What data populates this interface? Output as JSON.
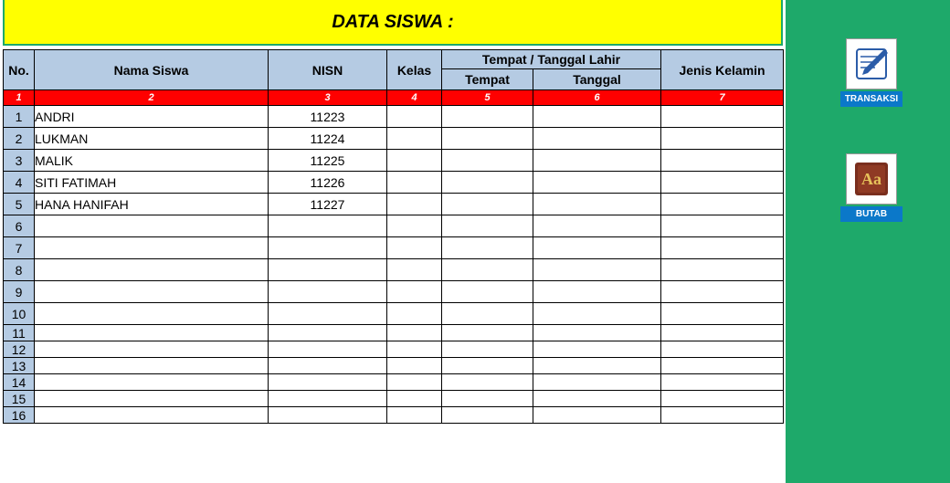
{
  "title": "DATA SISWA :",
  "columns": {
    "no": "No.",
    "nama": "Nama Siswa",
    "nisn": "NISN",
    "kelas": "Kelas",
    "ttl_group": "Tempat / Tanggal Lahir",
    "tempat": "Tempat",
    "tanggal": "Tanggal",
    "jk": "Jenis Kelamin"
  },
  "column_numbers": {
    "no": "1",
    "nama": "2",
    "nisn": "3",
    "kelas": "4",
    "tempat": "5",
    "tanggal": "6",
    "jk": "7"
  },
  "colors": {
    "title_bg": "#ffff00",
    "frame_border": "#1ea96a",
    "header_bg": "#b5cbe3",
    "number_row_bg": "#ff0000",
    "number_row_text": "#ffffff",
    "side_bg": "#1ea96a",
    "side_btn_bg": "#0b78c9"
  },
  "rows": [
    {
      "n": "1",
      "nama": "ANDRI",
      "nisn": "11223",
      "kelas": "",
      "tempat": "",
      "tanggal": "",
      "jk": ""
    },
    {
      "n": "2",
      "nama": "LUKMAN",
      "nisn": "11224",
      "kelas": "",
      "tempat": "",
      "tanggal": "",
      "jk": ""
    },
    {
      "n": "3",
      "nama": "MALIK",
      "nisn": "11225",
      "kelas": "",
      "tempat": "",
      "tanggal": "",
      "jk": ""
    },
    {
      "n": "4",
      "nama": "SITI FATIMAH",
      "nisn": "11226",
      "kelas": "",
      "tempat": "",
      "tanggal": "",
      "jk": ""
    },
    {
      "n": "5",
      "nama": "HANA HANIFAH",
      "nisn": "11227",
      "kelas": "",
      "tempat": "",
      "tanggal": "",
      "jk": ""
    },
    {
      "n": "6",
      "nama": "",
      "nisn": "",
      "kelas": "",
      "tempat": "",
      "tanggal": "",
      "jk": ""
    },
    {
      "n": "7",
      "nama": "",
      "nisn": "",
      "kelas": "",
      "tempat": "",
      "tanggal": "",
      "jk": ""
    },
    {
      "n": "8",
      "nama": "",
      "nisn": "",
      "kelas": "",
      "tempat": "",
      "tanggal": "",
      "jk": ""
    },
    {
      "n": "9",
      "nama": "",
      "nisn": "",
      "kelas": "",
      "tempat": "",
      "tanggal": "",
      "jk": ""
    },
    {
      "n": "10",
      "nama": "",
      "nisn": "",
      "kelas": "",
      "tempat": "",
      "tanggal": "",
      "jk": ""
    },
    {
      "n": "11",
      "nama": "",
      "nisn": "",
      "kelas": "",
      "tempat": "",
      "tanggal": "",
      "jk": ""
    },
    {
      "n": "12",
      "nama": "",
      "nisn": "",
      "kelas": "",
      "tempat": "",
      "tanggal": "",
      "jk": ""
    },
    {
      "n": "13",
      "nama": "",
      "nisn": "",
      "kelas": "",
      "tempat": "",
      "tanggal": "",
      "jk": ""
    },
    {
      "n": "14",
      "nama": "",
      "nisn": "",
      "kelas": "",
      "tempat": "",
      "tanggal": "",
      "jk": ""
    },
    {
      "n": "15",
      "nama": "",
      "nisn": "",
      "kelas": "",
      "tempat": "",
      "tanggal": "",
      "jk": ""
    },
    {
      "n": "16",
      "nama": "",
      "nisn": "",
      "kelas": "",
      "tempat": "",
      "tanggal": "",
      "jk": ""
    }
  ],
  "short_row_start": 11,
  "side_buttons": {
    "transaksi": "TRANSAKSI",
    "butab": "BUTAB"
  }
}
